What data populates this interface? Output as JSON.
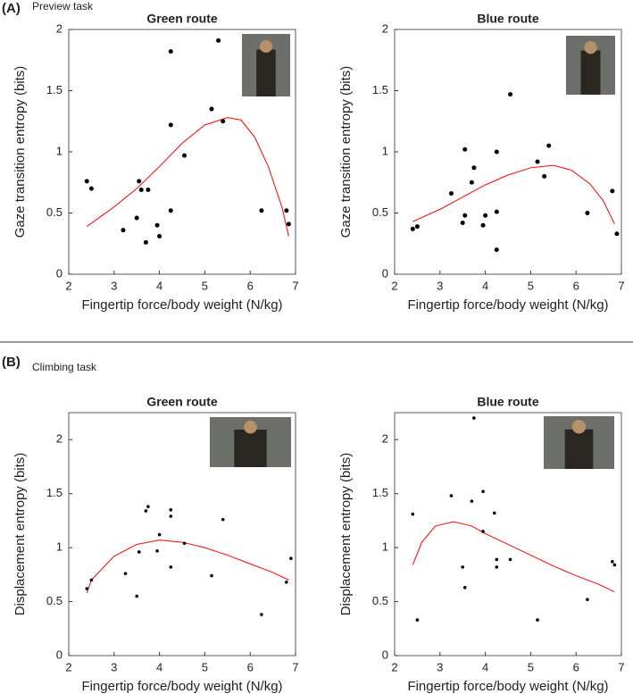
{
  "panels": [
    {
      "label": "(A)",
      "caption": "Preview task"
    },
    {
      "label": "(B)",
      "caption": "Climbing task"
    }
  ],
  "chart_data": [
    {
      "type": "scatter",
      "title": "Green route",
      "xlabel": "Fingertip force/body weight (N/kg)",
      "ylabel": "Gaze transition entropy (bits)",
      "x": [
        2.4,
        2.5,
        3.2,
        3.5,
        3.55,
        3.6,
        3.7,
        3.75,
        3.95,
        4.0,
        4.25,
        4.25,
        4.25,
        4.55,
        5.15,
        5.3,
        5.4,
        6.25,
        6.8,
        6.85
      ],
      "values": [
        0.76,
        0.7,
        0.36,
        0.46,
        0.76,
        0.69,
        0.26,
        0.69,
        0.4,
        0.31,
        0.52,
        1.82,
        1.22,
        0.97,
        1.35,
        1.91,
        1.25,
        0.52,
        0.52,
        0.41
      ],
      "color": "#000000",
      "fit": {
        "x": [
          2.4,
          3,
          3.5,
          4,
          4.5,
          5,
          5.5,
          5.8,
          6.1,
          6.4,
          6.7,
          6.85
        ],
        "values": [
          0.39,
          0.55,
          0.7,
          0.88,
          1.07,
          1.22,
          1.28,
          1.26,
          1.12,
          0.88,
          0.55,
          0.31
        ],
        "color": "#ff0000"
      },
      "xlim": [
        2,
        7
      ],
      "xticks": [
        2,
        3,
        4,
        5,
        6,
        7
      ],
      "ylim": [
        0,
        2
      ],
      "yticks": [
        0,
        0.5,
        1,
        1.5,
        2
      ]
    },
    {
      "type": "scatter",
      "title": "Blue route",
      "xlabel": "Fingertip force/body weight (N/kg)",
      "ylabel": "Gaze transition entropy (bits)",
      "x": [
        2.4,
        2.5,
        3.25,
        3.5,
        3.55,
        3.55,
        3.7,
        3.75,
        3.95,
        4.0,
        4.25,
        4.25,
        4.25,
        4.55,
        5.15,
        5.3,
        5.4,
        6.25,
        6.8,
        6.9
      ],
      "values": [
        0.37,
        0.39,
        0.66,
        0.42,
        0.48,
        1.02,
        0.75,
        0.87,
        0.4,
        0.48,
        0.2,
        0.51,
        1.0,
        1.47,
        0.92,
        0.8,
        1.05,
        0.5,
        0.68,
        0.33
      ],
      "color": "#000000",
      "fit": {
        "x": [
          2.4,
          3,
          3.5,
          4,
          4.5,
          5,
          5.5,
          5.9,
          6.3,
          6.6,
          6.85
        ],
        "values": [
          0.43,
          0.53,
          0.63,
          0.73,
          0.81,
          0.87,
          0.89,
          0.85,
          0.74,
          0.6,
          0.41
        ],
        "color": "#ff0000"
      },
      "xlim": [
        2,
        7
      ],
      "xticks": [
        2,
        3,
        4,
        5,
        6,
        7
      ],
      "ylim": [
        0,
        2
      ],
      "yticks": [
        0,
        0.5,
        1,
        1.5,
        2
      ]
    },
    {
      "type": "scatter",
      "title": "Green route",
      "xlabel": "Fingertip force/body weight (N/kg)",
      "ylabel": "Displacement entropy (bits)",
      "x": [
        2.4,
        2.5,
        3.25,
        3.5,
        3.55,
        3.7,
        3.75,
        3.95,
        4.0,
        4.25,
        4.25,
        4.25,
        4.55,
        5.15,
        5.4,
        6.25,
        6.8,
        6.9
      ],
      "values": [
        0.62,
        0.7,
        0.76,
        0.55,
        0.96,
        1.34,
        1.38,
        0.97,
        1.12,
        1.29,
        1.35,
        0.82,
        1.04,
        0.74,
        1.26,
        0.38,
        0.68,
        0.9
      ],
      "color": "#000000",
      "fit": {
        "x": [
          2.4,
          2.5,
          3,
          3.5,
          4,
          4.5,
          5,
          5.5,
          6,
          6.5,
          6.85
        ],
        "values": [
          0.58,
          0.7,
          0.92,
          1.03,
          1.07,
          1.05,
          1.0,
          0.93,
          0.85,
          0.77,
          0.7
        ],
        "color": "#ff0000"
      },
      "xlim": [
        2,
        7
      ],
      "xticks": [
        2,
        3,
        4,
        5,
        6,
        7
      ],
      "ylim": [
        0,
        2.25
      ],
      "yticks": [
        0,
        0.5,
        1,
        1.5,
        2
      ]
    },
    {
      "type": "scatter",
      "title": "Blue route",
      "xlabel": "Fingertip force/body weight (N/kg)",
      "ylabel": "Displacement entropy (bits)",
      "x": [
        2.4,
        2.5,
        3.25,
        3.5,
        3.55,
        3.7,
        3.75,
        3.95,
        3.95,
        4.2,
        4.25,
        4.25,
        4.55,
        5.15,
        6.25,
        6.8,
        6.85
      ],
      "values": [
        1.31,
        0.33,
        1.48,
        0.82,
        0.63,
        1.43,
        2.2,
        1.15,
        1.52,
        1.32,
        0.82,
        0.89,
        0.89,
        0.33,
        0.52,
        0.87,
        0.84
      ],
      "color": "#000000",
      "fit": {
        "x": [
          2.4,
          2.6,
          2.9,
          3.3,
          3.7,
          4,
          4.5,
          5,
          5.5,
          6,
          6.5,
          6.85
        ],
        "values": [
          0.84,
          1.05,
          1.2,
          1.24,
          1.2,
          1.13,
          1.03,
          0.93,
          0.83,
          0.74,
          0.66,
          0.59
        ],
        "color": "#ff0000"
      },
      "xlim": [
        2,
        7
      ],
      "xticks": [
        2,
        3,
        4,
        5,
        6,
        7
      ],
      "ylim": [
        0,
        2.25
      ],
      "yticks": [
        0,
        0.5,
        1,
        1.5,
        2
      ]
    }
  ]
}
